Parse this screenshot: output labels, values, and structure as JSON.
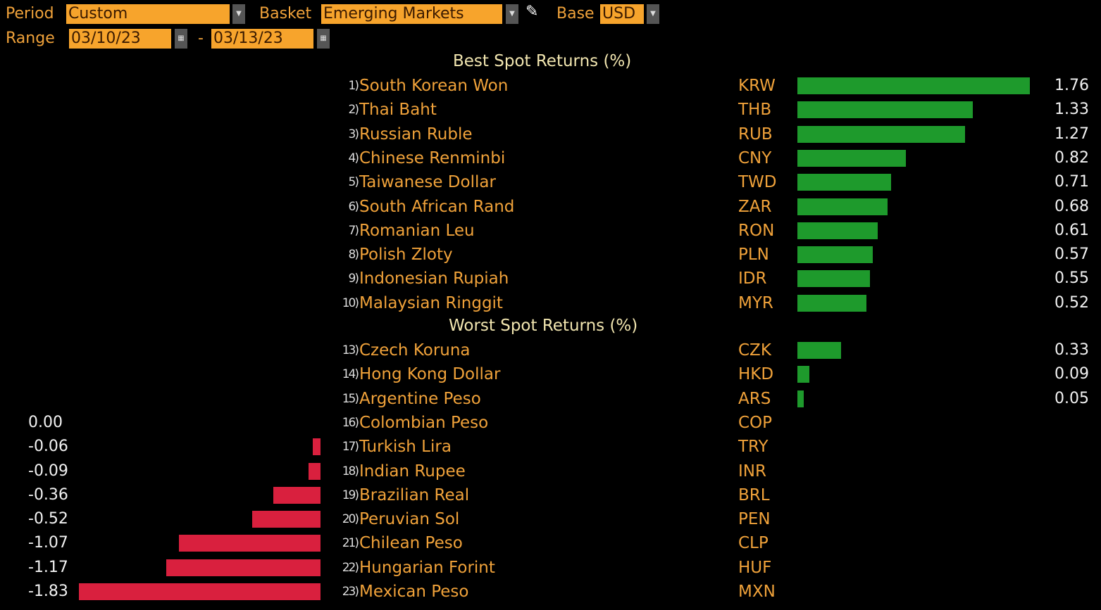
{
  "controls": {
    "period_label": "Period",
    "period_value": "Custom",
    "basket_label": "Basket",
    "basket_value": "Emerging Markets",
    "base_label": "Base",
    "base_value": "USD",
    "range_label": "Range",
    "range_start": "03/10/23",
    "range_sep": "-",
    "range_end": "03/13/23"
  },
  "best_title": "Best Spot Returns (%)",
  "worst_title": "Worst Spot Returns (%)",
  "colors": {
    "positive": "#1e9a2c",
    "negative": "#d9203e",
    "text": "#f0a23a"
  },
  "chart_data": {
    "type": "bar",
    "best": [
      {
        "rank": "1)",
        "name": "South Korean Won",
        "code": "KRW",
        "value": 1.76,
        "label": "1.76"
      },
      {
        "rank": "2)",
        "name": "Thai Baht",
        "code": "THB",
        "value": 1.33,
        "label": "1.33"
      },
      {
        "rank": "3)",
        "name": "Russian Ruble",
        "code": "RUB",
        "value": 1.27,
        "label": "1.27"
      },
      {
        "rank": "4)",
        "name": "Chinese Renminbi",
        "code": "CNY",
        "value": 0.82,
        "label": "0.82"
      },
      {
        "rank": "5)",
        "name": "Taiwanese Dollar",
        "code": "TWD",
        "value": 0.71,
        "label": "0.71"
      },
      {
        "rank": "6)",
        "name": "South African Rand",
        "code": "ZAR",
        "value": 0.68,
        "label": "0.68"
      },
      {
        "rank": "7)",
        "name": "Romanian Leu",
        "code": "RON",
        "value": 0.61,
        "label": "0.61"
      },
      {
        "rank": "8)",
        "name": "Polish Zloty",
        "code": "PLN",
        "value": 0.57,
        "label": "0.57"
      },
      {
        "rank": "9)",
        "name": "Indonesian Rupiah",
        "code": "IDR",
        "value": 0.55,
        "label": "0.55"
      },
      {
        "rank": "10)",
        "name": "Malaysian Ringgit",
        "code": "MYR",
        "value": 0.52,
        "label": "0.52"
      }
    ],
    "worst": [
      {
        "rank": "13)",
        "name": "Czech Koruna",
        "code": "CZK",
        "value": 0.33,
        "label": "0.33"
      },
      {
        "rank": "14)",
        "name": "Hong Kong Dollar",
        "code": "HKD",
        "value": 0.09,
        "label": "0.09"
      },
      {
        "rank": "15)",
        "name": "Argentine Peso",
        "code": "ARS",
        "value": 0.05,
        "label": "0.05"
      },
      {
        "rank": "16)",
        "name": "Colombian Peso",
        "code": "COP",
        "value": 0.0,
        "label": "0.00"
      },
      {
        "rank": "17)",
        "name": "Turkish Lira",
        "code": "TRY",
        "value": -0.06,
        "label": "-0.06"
      },
      {
        "rank": "18)",
        "name": "Indian Rupee",
        "code": "INR",
        "value": -0.09,
        "label": "-0.09"
      },
      {
        "rank": "19)",
        "name": "Brazilian Real",
        "code": "BRL",
        "value": -0.36,
        "label": "-0.36"
      },
      {
        "rank": "20)",
        "name": "Peruvian Sol",
        "code": "PEN",
        "value": -0.52,
        "label": "-0.52"
      },
      {
        "rank": "21)",
        "name": "Chilean Peso",
        "code": "CLP",
        "value": -1.07,
        "label": "-1.07"
      },
      {
        "rank": "22)",
        "name": "Hungarian Forint",
        "code": "HUF",
        "value": -1.17,
        "label": "-1.17"
      },
      {
        "rank": "23)",
        "name": "Mexican Peso",
        "code": "MXN",
        "value": -1.83,
        "label": "-1.83"
      }
    ]
  }
}
